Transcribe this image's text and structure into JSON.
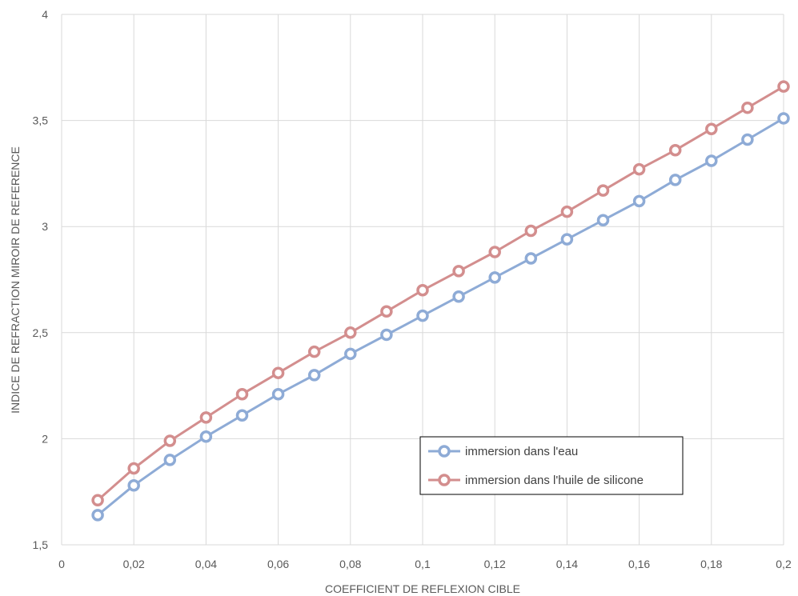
{
  "chart_data": {
    "type": "line",
    "title": "",
    "xlabel": "COEFFICIENT DE REFLEXION CIBLE",
    "ylabel": "INDICE DE REFRACTION MIROIR DE REFERENCE",
    "xlim": [
      0,
      0.2
    ],
    "ylim": [
      1.5,
      4
    ],
    "xticks": [
      "0",
      "0,02",
      "0,04",
      "0,06",
      "0,08",
      "0,1",
      "0,12",
      "0,14",
      "0,16",
      "0,18",
      "0,2"
    ],
    "yticks": [
      "1,5",
      "2",
      "2,5",
      "3",
      "3,5",
      "4"
    ],
    "grid": true,
    "legend_position": "bottom-right",
    "x": [
      0.01,
      0.02,
      0.03,
      0.04,
      0.05,
      0.06,
      0.07,
      0.08,
      0.09,
      0.1,
      0.11,
      0.12,
      0.13,
      0.14,
      0.15,
      0.16,
      0.17,
      0.18,
      0.19,
      0.2
    ],
    "series": [
      {
        "name": "immersion dans l'eau",
        "color": "#8eabd6",
        "values": [
          1.64,
          1.78,
          1.9,
          2.01,
          2.11,
          2.21,
          2.3,
          2.4,
          2.49,
          2.58,
          2.67,
          2.76,
          2.85,
          2.94,
          3.03,
          3.12,
          3.22,
          3.31,
          3.41,
          3.51
        ]
      },
      {
        "name": "immersion dans l'huile de silicone",
        "color": "#d38e8e",
        "values": [
          1.71,
          1.86,
          1.99,
          2.1,
          2.21,
          2.31,
          2.41,
          2.5,
          2.6,
          2.7,
          2.79,
          2.88,
          2.98,
          3.07,
          3.17,
          3.27,
          3.36,
          3.46,
          3.56,
          3.66
        ]
      }
    ]
  }
}
